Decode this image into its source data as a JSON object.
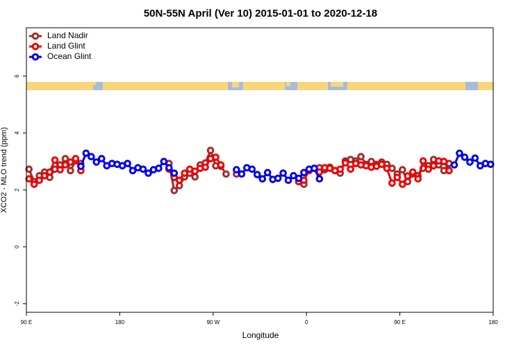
{
  "chart_data": {
    "type": "line",
    "title": "50N-55N April (Ver 10)   2015-01-01 to 2020-12-18",
    "x_label": "Longitude",
    "y_label": "XCO2 - MLO trend (ppm)",
    "xlim": [
      90,
      540
    ],
    "ylim": [
      -2.3,
      7.7
    ],
    "xticks": [
      {
        "value": 90,
        "label": "90 E"
      },
      180,
      {
        "value": 270,
        "label": "90 W"
      },
      {
        "value": 360,
        "label": "0"
      },
      {
        "value": 450,
        "label": "90 E"
      },
      {
        "value": 540,
        "label": "180"
      }
    ],
    "yticks": [
      -2,
      0,
      2,
      4,
      6
    ],
    "legend": "top-left",
    "x": [
      92.5,
      97.5,
      102.5,
      107.5,
      112.5,
      117.5,
      122.5,
      127.5,
      132.5,
      137.5,
      142.5,
      147.5,
      152.5,
      157.5,
      162.5,
      167.5,
      172.5,
      177.5,
      182.5,
      187.5,
      192.5,
      197.5,
      202.5,
      207.5,
      212.5,
      217.5,
      222.5,
      227.5,
      232.5,
      237.5,
      242.5,
      247.5,
      252.5,
      257.5,
      262.5,
      267.5,
      272.5,
      277.5,
      282.5,
      287.5,
      292.5,
      297.5,
      302.5,
      307.5,
      312.5,
      317.5,
      322.5,
      327.5,
      332.5,
      337.5,
      342.5,
      347.5,
      352.5,
      357.5,
      362.5,
      367.5,
      372.5,
      377.5,
      382.5,
      387.5,
      392.5,
      397.5,
      402.5,
      407.5,
      412.5,
      417.5,
      422.5,
      427.5,
      432.5,
      437.5,
      442.5,
      447.5,
      452.5,
      457.5,
      462.5,
      467.5,
      472.5,
      477.5,
      482.5,
      487.5,
      492.5,
      497.5,
      502.5,
      507.5,
      512.5,
      517.5,
      522.5,
      527.5,
      532.5,
      537.5
    ],
    "series": [
      {
        "name": "Land Nadir",
        "color": "#a52a2a",
        "values": [
          2.73,
          2.29,
          2.5,
          2.63,
          2.44,
          2.73,
          2.88,
          3.1,
          2.68,
          3.02,
          2.93,
          null,
          null,
          null,
          null,
          null,
          null,
          null,
          null,
          null,
          null,
          null,
          null,
          null,
          null,
          null,
          null,
          2.93,
          1.98,
          2.15,
          2.46,
          2.59,
          2.46,
          2.88,
          2.95,
          3.39,
          2.85,
          2.83,
          2.56,
          null,
          2.56,
          null,
          null,
          null,
          null,
          null,
          null,
          null,
          null,
          null,
          null,
          null,
          2.29,
          2.2,
          null,
          2.76,
          2.78,
          2.71,
          2.8,
          2.68,
          2.59,
          3.02,
          3.07,
          3.02,
          3.17,
          2.9,
          3.0,
          2.9,
          2.98,
          2.9,
          2.76,
          2.56,
          2.71,
          2.29,
          2.56,
          2.5,
          2.76,
          2.85,
          3.07,
          2.88,
          2.68,
          2.93,
          null,
          null,
          null,
          null,
          null,
          null,
          null,
          null
        ]
      },
      {
        "name": "Land Glint",
        "color": "#ee0000",
        "values": [
          2.39,
          2.2,
          2.34,
          2.5,
          2.63,
          3.05,
          2.71,
          2.88,
          2.98,
          3.1,
          2.68,
          null,
          null,
          null,
          null,
          null,
          null,
          null,
          null,
          null,
          null,
          null,
          null,
          null,
          null,
          null,
          null,
          2.73,
          2.44,
          2.34,
          2.59,
          2.73,
          2.66,
          2.76,
          2.8,
          3.1,
          3.15,
          2.88,
          null,
          null,
          null,
          null,
          null,
          null,
          null,
          null,
          null,
          null,
          null,
          null,
          null,
          null,
          2.29,
          2.34,
          2.68,
          2.76,
          2.63,
          2.78,
          2.76,
          2.68,
          2.73,
          2.95,
          2.73,
          2.93,
          2.88,
          2.85,
          2.8,
          2.83,
          2.9,
          2.76,
          2.24,
          2.44,
          2.2,
          2.49,
          2.63,
          2.39,
          3.02,
          2.73,
          2.85,
          3.02,
          3.0,
          2.68,
          null,
          null,
          null,
          null,
          null,
          null,
          null,
          null
        ]
      },
      {
        "name": "Ocean Glint",
        "color": "#0000ee",
        "values": [
          null,
          null,
          null,
          null,
          null,
          null,
          null,
          null,
          null,
          null,
          2.83,
          3.29,
          3.17,
          2.98,
          3.1,
          2.85,
          2.93,
          2.9,
          2.85,
          2.93,
          2.68,
          2.78,
          2.73,
          2.59,
          2.71,
          2.76,
          3.0,
          2.78,
          2.59,
          null,
          null,
          null,
          null,
          null,
          null,
          null,
          null,
          null,
          null,
          null,
          2.71,
          2.56,
          2.78,
          2.73,
          2.54,
          2.39,
          2.61,
          2.37,
          2.41,
          2.59,
          2.34,
          2.5,
          2.41,
          2.61,
          2.73,
          2.76,
          2.39,
          null,
          null,
          null,
          null,
          null,
          null,
          null,
          null,
          null,
          null,
          null,
          null,
          null,
          null,
          null,
          null,
          null,
          null,
          null,
          null,
          null,
          null,
          null,
          null,
          null,
          2.88,
          3.29,
          3.15,
          2.98,
          3.12,
          2.85,
          2.93,
          2.9
        ]
      }
    ]
  }
}
